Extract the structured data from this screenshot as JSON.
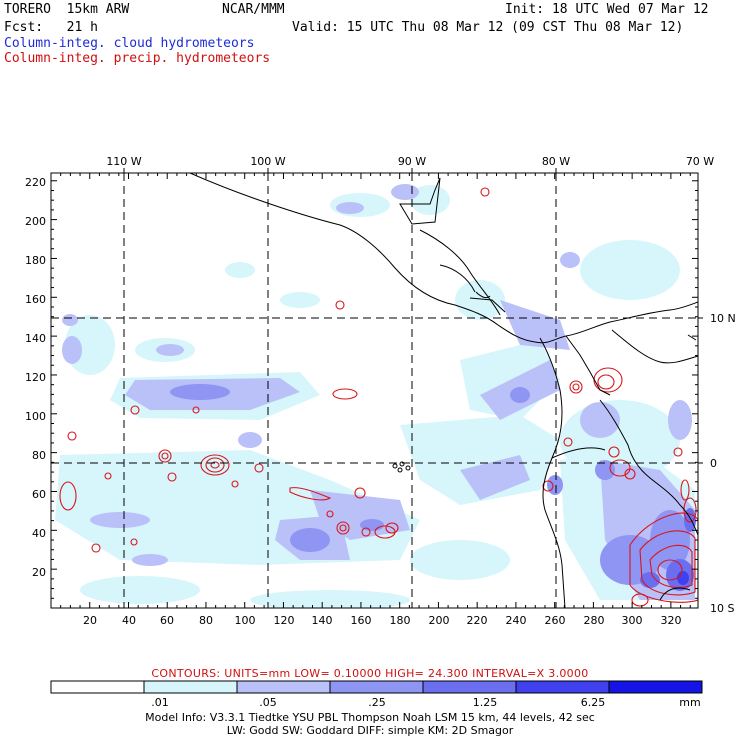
{
  "header": {
    "model": "TORERO  15km ARW",
    "center": "NCAR/MMM",
    "init": "Init: 18 UTC Wed 07 Mar 12",
    "fcst": "Fcst:   21 h",
    "valid": "Valid: 15 UTC Thu 08 Mar 12 (09 CST Thu 08 Mar 12)",
    "legend_cloud": "Column-integ. cloud hydrometeors",
    "legend_precip": "Column-integ. precip. hydrometeors"
  },
  "axes": {
    "top_lon_labels": [
      "110 W",
      "100 W",
      "90 W",
      "80 W",
      "70 W"
    ],
    "right_lat_labels": [
      "10 N",
      "0",
      "10 S"
    ],
    "y_ticks": [
      "220",
      "200",
      "180",
      "160",
      "140",
      "120",
      "100",
      "80",
      "60",
      "40",
      "20"
    ],
    "x_ticks": [
      "20",
      "40",
      "60",
      "80",
      "100",
      "120",
      "140",
      "160",
      "180",
      "200",
      "220",
      "240",
      "260",
      "280",
      "300",
      "320"
    ]
  },
  "contours_line": "CONTOURS:  UNITS=mm  LOW= 0.10000        HIGH=  24.300        INTERVAL=X  3.0000",
  "colorbar": {
    "labels": [
      ".01",
      ".05",
      ".25",
      "1.25",
      "6.25"
    ],
    "unit": "mm",
    "colors": [
      "#ffffff",
      "#d6f6fb",
      "#b9c1f8",
      "#8f95f2",
      "#6c6ef0",
      "#4040ee",
      "#1414e6"
    ]
  },
  "model_info_1": "Model Info: V3.3.1    Tiedtke YSU PBL  Thompson     Noah LSM  15 km,   44 levels,    42 sec",
  "model_info_2": "LW: Godd SW: Goddard DIFF: simple KM: 2D Smagor"
}
